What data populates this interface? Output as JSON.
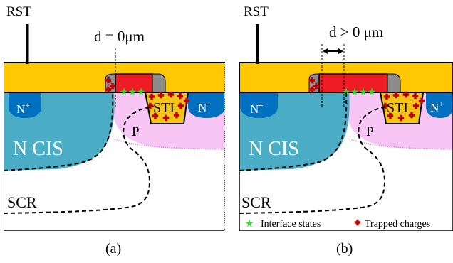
{
  "panel_a": {
    "rst_label": "RST",
    "d_label": "d = 0μm",
    "n_plus_left": "N",
    "n_plus_right": "N",
    "plus_sup": "+",
    "sti_label": "STI",
    "p_label": "P",
    "ncis_label": "N CIS",
    "scr_label": "SCR",
    "caption": "(a)"
  },
  "panel_b": {
    "rst_label": "RST",
    "d_label": "d > 0 μm",
    "n_plus_left": "N",
    "n_plus_right": "N",
    "plus_sup": "+",
    "sti_label": "STI",
    "p_label": "P",
    "ncis_label": "N CIS",
    "scr_label": "SCR",
    "caption": "(b)"
  },
  "legend": {
    "interface_states": "Interface states",
    "trapped_charges": "Trapped charges"
  },
  "colors": {
    "gate_yellow": "#FFC800",
    "gate_red": "#EE1C24",
    "ncis_blue": "#4BACC6",
    "nplus_blue": "#0070C0",
    "p_pink": "#F7C6F5",
    "p_dots": "#E060E0",
    "sti_gold": "#F5C518",
    "charge_red": "#C00000",
    "interface_green": "#33DD33",
    "spacer_gray": "#8C8C8C"
  }
}
